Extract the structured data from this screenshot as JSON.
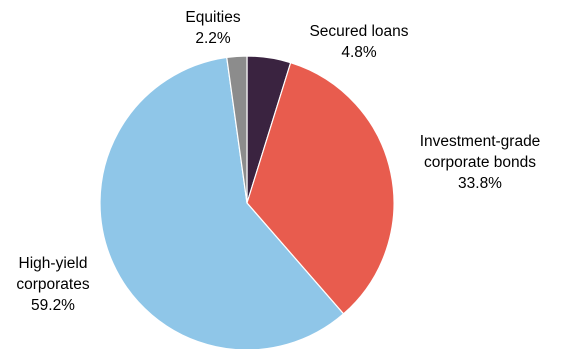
{
  "chart_data": {
    "type": "pie",
    "slices": [
      {
        "name": "Secured loans",
        "value": 4.8,
        "label_value": "4.8%",
        "color": "#3a2340"
      },
      {
        "name": "Investment-grade corporate bonds",
        "label_lines": [
          "Investment-grade",
          "corporate bonds"
        ],
        "value": 33.8,
        "label_value": "33.8%",
        "color": "#e85c4e"
      },
      {
        "name": "High-yield corporates",
        "label_lines": [
          "High-yield",
          "corporates"
        ],
        "value": 59.2,
        "label_value": "59.2%",
        "color": "#8fc6e8"
      },
      {
        "name": "Equities",
        "value": 2.2,
        "label_value": "2.2%",
        "color": "#8c8c8c"
      }
    ]
  }
}
